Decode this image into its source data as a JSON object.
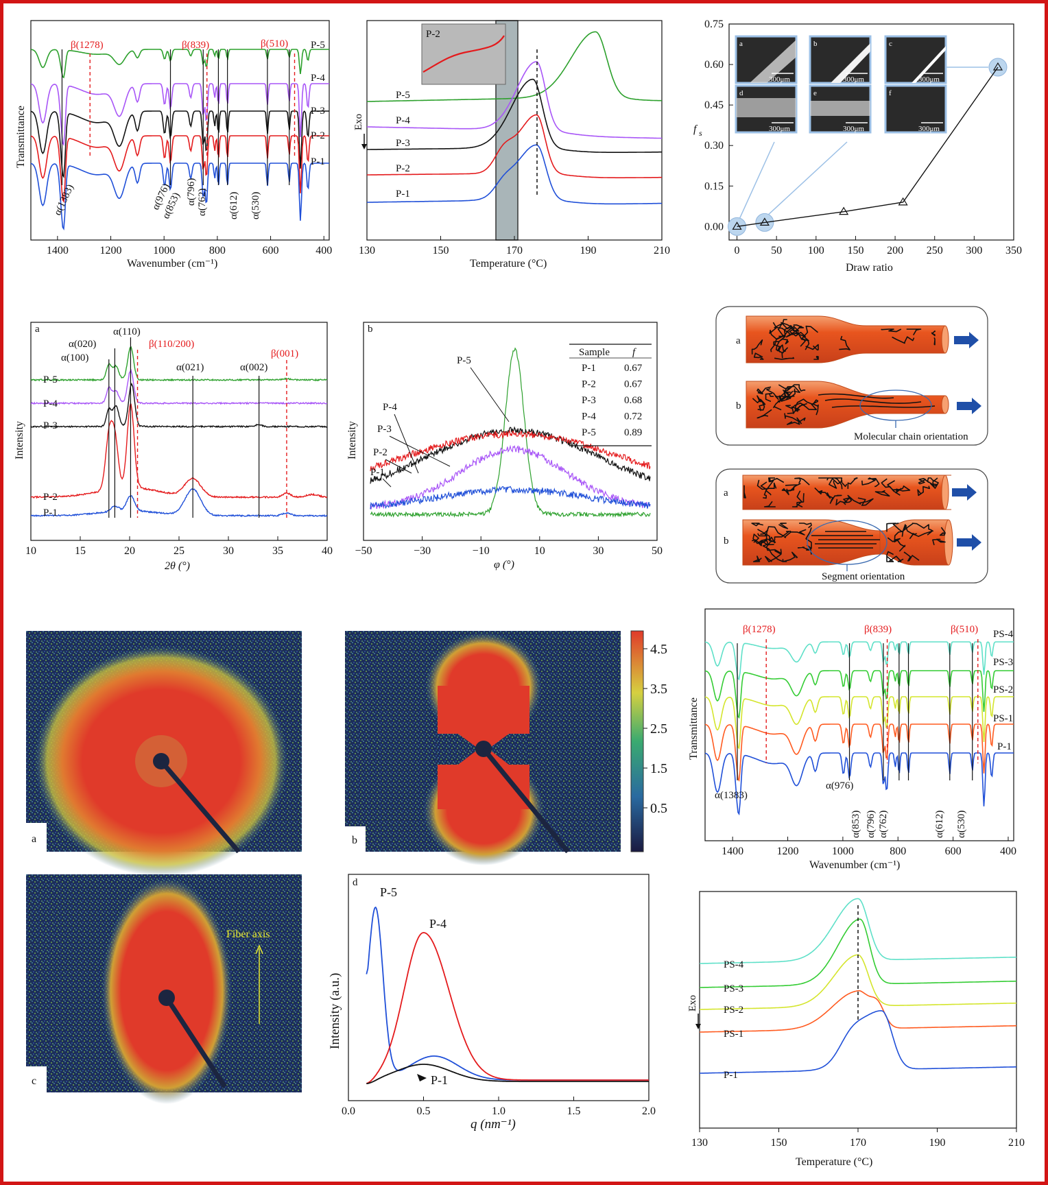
{
  "colors": {
    "frame": "#d21515",
    "green": "#2ca02c",
    "purple": "#a855f7",
    "black": "#111111",
    "red": "#e41a1c",
    "blue": "#1f4fd8",
    "cyan": "#5ee0c8",
    "lime": "#33cc33",
    "yellow": "#d4e52c",
    "orange": "#ff5a1f",
    "saxs_red": "#e03a2a",
    "arrow": "#1f4fa8"
  },
  "ftir_top": {
    "xlabel": "Wavenumber (cm⁻¹)",
    "ylabel": "Transmittance",
    "xticks": [
      "1400",
      "1200",
      "1000",
      "800",
      "600",
      "400"
    ],
    "series": [
      "P-5",
      "P-4",
      "P-3",
      "P-2",
      "P-1"
    ],
    "beta": [
      "β(1278)",
      "β(839)",
      "β(510)"
    ],
    "alpha": [
      "α(1383)",
      "α(976)",
      "α(853)",
      "α(796)",
      "α(762)",
      "α(612)",
      "α(530)"
    ]
  },
  "dsc_top": {
    "xlabel": "Temperature (°C)",
    "ylabel": "Exo",
    "xticks": [
      "130",
      "150",
      "170",
      "190",
      "210"
    ],
    "series": [
      "P-5",
      "P-4",
      "P-3",
      "P-2",
      "P-1"
    ],
    "inset": "P-2"
  },
  "fs_chart": {
    "ylabel": "f",
    "ylabel_sub": "s",
    "xlabel": "Draw ratio",
    "xticks": [
      "0",
      "50",
      "100",
      "150",
      "200",
      "250",
      "300",
      "350"
    ],
    "yticks": [
      "0.00",
      "0.15",
      "0.30",
      "0.45",
      "0.60",
      "0.75"
    ],
    "micro_labels": [
      "a",
      "b",
      "c",
      "d",
      "e",
      "f"
    ],
    "scale": "300μm"
  },
  "xrd": {
    "panel": "a",
    "xlabel": "2θ (°)",
    "ylabel": "Intensity",
    "xticks": [
      "10",
      "15",
      "20",
      "25",
      "30",
      "35",
      "40"
    ],
    "series": [
      "P-5",
      "P-4",
      "P-3",
      "P-2",
      "P-1"
    ],
    "alpha": [
      "α(110)",
      "α(020)",
      "α(100)",
      "α(021)",
      "α(002)"
    ],
    "beta": [
      "β(110/200)",
      "β(001)"
    ]
  },
  "azimuth": {
    "panel": "b",
    "xlabel": "φ (°)",
    "ylabel": "Intensity",
    "xticks": [
      "−50",
      "−30",
      "−10",
      "10",
      "30",
      "50"
    ],
    "series": [
      "P-5",
      "P-4",
      "P-3",
      "P-2",
      "P-1"
    ],
    "table_head": [
      "Sample",
      "f"
    ],
    "table_rows": [
      [
        "P-1",
        "0.67"
      ],
      [
        "P-2",
        "0.67"
      ],
      [
        "P-3",
        "0.68"
      ],
      [
        "P-4",
        "0.72"
      ],
      [
        "P-5",
        "0.89"
      ]
    ]
  },
  "schematic": {
    "top_labels": [
      "a",
      "b"
    ],
    "top_caption": "Molecular chain orientation",
    "bottom_labels": [
      "a",
      "b"
    ],
    "bottom_caption": "Segment orientation"
  },
  "saxs": {
    "labels": [
      "a",
      "b",
      "c"
    ],
    "colorbar_ticks": [
      "4.5",
      "3.5",
      "2.5",
      "1.5",
      "0.5"
    ],
    "fiber_axis": "Fiber axis"
  },
  "saxs_profile": {
    "panel": "d",
    "xlabel": "q (nm⁻¹)",
    "ylabel": "Intensity (a.u.)",
    "xticks": [
      "0.0",
      "0.5",
      "1.0",
      "1.5",
      "2.0"
    ],
    "series": [
      "P-5",
      "P-4",
      "P-1"
    ]
  },
  "ftir_bottom": {
    "xlabel": "Wavenumber (cm⁻¹)",
    "ylabel": "Transmittance",
    "xticks": [
      "1400",
      "1200",
      "1000",
      "800",
      "600",
      "400"
    ],
    "series": [
      "PS-4",
      "PS-3",
      "PS-2",
      "PS-1",
      "P-1"
    ],
    "beta": [
      "β(1278)",
      "β(839)",
      "β(510)"
    ],
    "alpha": [
      "α(1383)",
      "α(976)",
      "α(853)",
      "α(796)",
      "α(762)",
      "α(612)",
      "α(530)"
    ]
  },
  "dsc_bottom": {
    "xlabel": "Temperature (°C)",
    "ylabel": "Exo",
    "xticks": [
      "130",
      "150",
      "170",
      "190",
      "210"
    ],
    "series": [
      "PS-4",
      "PS-3",
      "PS-2",
      "PS-1",
      "P-1"
    ]
  },
  "chart_data": [
    {
      "type": "line",
      "xlabel": "Wavenumber (cm⁻¹)",
      "ylabel": "Transmittance",
      "xlim": [
        1500,
        380
      ],
      "series": [
        {
          "name": "P-5"
        },
        {
          "name": "P-4"
        },
        {
          "name": "P-3"
        },
        {
          "name": "P-2"
        },
        {
          "name": "P-1"
        }
      ],
      "beta_bands": [
        1278,
        839,
        510
      ],
      "alpha_bands": [
        1383,
        976,
        853,
        796,
        762,
        612,
        530
      ]
    },
    {
      "type": "line",
      "xlabel": "Temperature (°C)",
      "ylabel": "Exo",
      "xlim": [
        130,
        210
      ],
      "series": [
        {
          "name": "P-5",
          "peak_temperature": 192
        },
        {
          "name": "P-4",
          "peak_temperature": 176
        },
        {
          "name": "P-3",
          "peak_temperature": 175
        },
        {
          "name": "P-2",
          "peak_temperature": 176
        },
        {
          "name": "P-1",
          "peak_temperature": 176
        }
      ]
    },
    {
      "type": "line",
      "xlabel": "Draw ratio",
      "ylabel": "fs",
      "xlim": [
        -10,
        350
      ],
      "ylim": [
        -0.05,
        0.75
      ],
      "x": [
        0,
        35,
        135,
        210,
        330
      ],
      "values": [
        0.0,
        0.015,
        0.055,
        0.09,
        0.59
      ]
    },
    {
      "type": "line",
      "xlabel": "2θ (°)",
      "ylabel": "Intensity",
      "xlim": [
        10,
        40
      ],
      "series": [
        {
          "name": "P-5"
        },
        {
          "name": "P-4"
        },
        {
          "name": "P-3"
        },
        {
          "name": "P-2"
        },
        {
          "name": "P-1"
        }
      ],
      "peaks": {
        "α(100)": 17.9,
        "α(020)": 18.5,
        "α(110)": 20.1,
        "β(110/200)": 20.8,
        "α(021)": 26.4,
        "α(002)": 33.1,
        "β(001)": 35.9
      }
    },
    {
      "type": "line",
      "xlabel": "φ (°)",
      "ylabel": "Intensity",
      "xlim": [
        -50,
        50
      ],
      "series": [
        {
          "name": "P-5"
        },
        {
          "name": "P-4"
        },
        {
          "name": "P-3"
        },
        {
          "name": "P-2"
        },
        {
          "name": "P-1"
        }
      ],
      "orientation_factor": {
        "P-1": 0.67,
        "P-2": 0.67,
        "P-3": 0.68,
        "P-4": 0.72,
        "P-5": 0.89
      }
    },
    {
      "type": "line",
      "xlabel": "q (nm⁻¹)",
      "ylabel": "Intensity (a.u.)",
      "xlim": [
        0,
        2.0
      ],
      "series": [
        {
          "name": "P-5",
          "peak_q": 0.18
        },
        {
          "name": "P-4",
          "peak_q": 0.5
        },
        {
          "name": "P-1",
          "peak_q": 0.5
        }
      ]
    },
    {
      "type": "line",
      "xlabel": "Wavenumber (cm⁻¹)",
      "ylabel": "Transmittance",
      "xlim": [
        1500,
        380
      ],
      "series": [
        {
          "name": "PS-4"
        },
        {
          "name": "PS-3"
        },
        {
          "name": "PS-2"
        },
        {
          "name": "PS-1"
        },
        {
          "name": "P-1"
        }
      ],
      "beta_bands": [
        1278,
        839,
        510
      ],
      "alpha_bands": [
        1383,
        976,
        853,
        796,
        762,
        612,
        530
      ]
    },
    {
      "type": "line",
      "xlabel": "Temperature (°C)",
      "ylabel": "Exo",
      "xlim": [
        130,
        210
      ],
      "series": [
        {
          "name": "PS-4",
          "peak_temperature": 170
        },
        {
          "name": "PS-3",
          "peak_temperature": 170
        },
        {
          "name": "PS-2",
          "peak_temperature": 170
        },
        {
          "name": "PS-1",
          "peak_temperature": 170
        },
        {
          "name": "P-1",
          "peak_temperature": 176
        }
      ]
    }
  ]
}
